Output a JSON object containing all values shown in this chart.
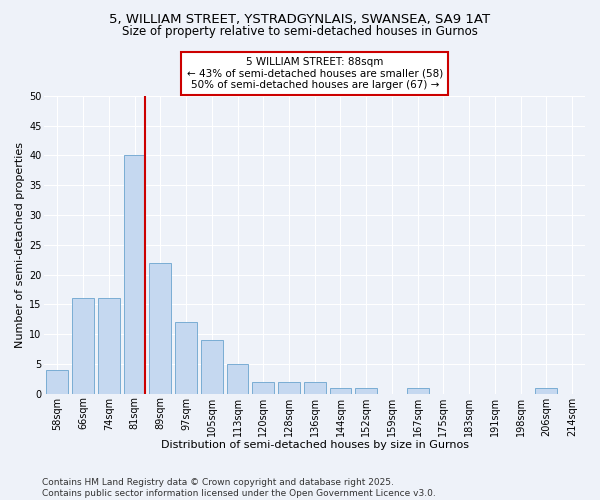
{
  "title": "5, WILLIAM STREET, YSTRADGYNLAIS, SWANSEA, SA9 1AT",
  "subtitle": "Size of property relative to semi-detached houses in Gurnos",
  "xlabel": "Distribution of semi-detached houses by size in Gurnos",
  "ylabel": "Number of semi-detached properties",
  "categories": [
    "58sqm",
    "66sqm",
    "74sqm",
    "81sqm",
    "89sqm",
    "97sqm",
    "105sqm",
    "113sqm",
    "120sqm",
    "128sqm",
    "136sqm",
    "144sqm",
    "152sqm",
    "159sqm",
    "167sqm",
    "175sqm",
    "183sqm",
    "191sqm",
    "198sqm",
    "206sqm",
    "214sqm"
  ],
  "values": [
    4,
    16,
    16,
    40,
    22,
    12,
    9,
    5,
    2,
    2,
    2,
    1,
    1,
    0,
    1,
    0,
    0,
    0,
    0,
    1,
    0
  ],
  "bar_color": "#c5d8f0",
  "bar_edge_color": "#7aadd4",
  "highlight_line_color": "#cc0000",
  "annotation_text": "5 WILLIAM STREET: 88sqm\n← 43% of semi-detached houses are smaller (58)\n50% of semi-detached houses are larger (67) →",
  "annotation_box_color": "#cc0000",
  "annotation_bg": "#ffffff",
  "ylim": [
    0,
    50
  ],
  "yticks": [
    0,
    5,
    10,
    15,
    20,
    25,
    30,
    35,
    40,
    45,
    50
  ],
  "footer": "Contains HM Land Registry data © Crown copyright and database right 2025.\nContains public sector information licensed under the Open Government Licence v3.0.",
  "bg_color": "#eef2f9",
  "plot_bg_color": "#eef2f9",
  "title_fontsize": 9.5,
  "subtitle_fontsize": 8.5,
  "xlabel_fontsize": 8,
  "ylabel_fontsize": 8,
  "tick_fontsize": 7,
  "footer_fontsize": 6.5,
  "annotation_fontsize": 7.5
}
